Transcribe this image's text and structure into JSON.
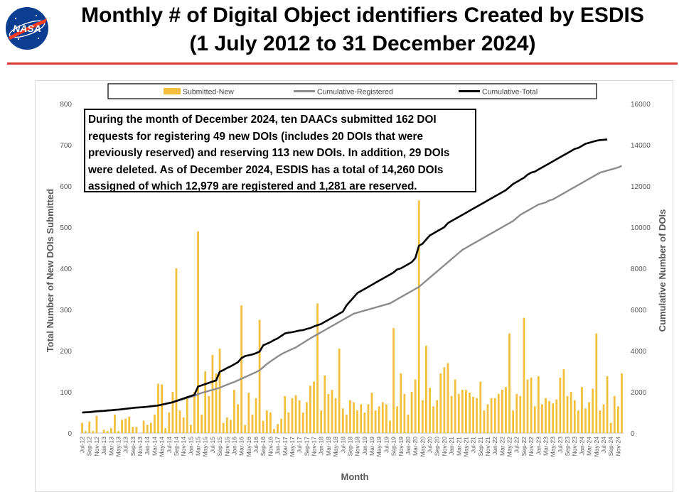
{
  "title": {
    "line1": "Monthly # of Digital Object identifiers Created by ESDIS",
    "line2": "(1 July 2012 to 31 December 2024)"
  },
  "logo": {
    "text": "NASA",
    "icon": "nasa-meatball-logo"
  },
  "annotation": "During the month of December 2024, ten DAACs submitted 162 DOI requests for registering 49 new DOIs (includes 20 DOIs that were previously reserved) and reserving 113 new DOIs. In addition, 29 DOIs were deleted. As of December 2024, ESDIS has a total of 14,260 DOIs assigned of which 12,979 are registered and 1,281 are reserved.",
  "colors": {
    "bar": "#f2c03c",
    "registered": "#8c8c8c",
    "total": "#000000",
    "rule": "#d9372e"
  },
  "chart_data": {
    "type": "bar+line",
    "xlabel": "Month",
    "ylabel": "Total Number of New DOIs Submitted",
    "y2label": "Cumulative Number of DOIs",
    "ylim": [
      0,
      800
    ],
    "y2lim": [
      0,
      16000
    ],
    "yticks": [
      0,
      100,
      200,
      300,
      400,
      500,
      600,
      700,
      800
    ],
    "y2ticks": [
      0,
      2000,
      4000,
      6000,
      8000,
      10000,
      12000,
      14000,
      16000
    ],
    "legend_position": "top",
    "tick_labels": [
      "Jul-12",
      "Sep-12",
      "Nov-12",
      "Jan-13",
      "Mar-13",
      "May-13",
      "Jul-13",
      "Sep-13",
      "Nov-13",
      "Jan-14",
      "Mar-14",
      "May-14",
      "Jul-14",
      "Sep-14",
      "Nov-14",
      "Jan-15",
      "Mar-15",
      "May-15",
      "Jul-15",
      "Sep-15",
      "Nov-15",
      "Jan-16",
      "Mar-16",
      "May-16",
      "Jul-16",
      "Sep-16",
      "Nov-16",
      "Jan-17",
      "Mar-17",
      "May-17",
      "Jul-17",
      "Sep-17",
      "Nov-17",
      "Jan-18",
      "Mar-18",
      "May-18",
      "Jul-18",
      "Sep-18",
      "Nov-18",
      "Jan-19",
      "Mar-19",
      "May-19",
      "Jul-19",
      "Sep-19",
      "Nov-19",
      "Jan-20",
      "Mar-20",
      "May-20",
      "Jul-20",
      "Sep-20",
      "Nov-20",
      "Jan-21",
      "Mar-21",
      "May-21",
      "Jul-21",
      "Sep-21",
      "Nov-21",
      "Jan-22",
      "Mar-22",
      "May-22",
      "Jul-22",
      "Sep-22",
      "Nov-22",
      "Jan-23",
      "Mar-23",
      "May-23",
      "Jul-23",
      "Sep-23",
      "Nov-23",
      "Jan-24",
      "Mar-24",
      "May-24",
      "Jul-24",
      "Sep-24",
      "Nov-24"
    ],
    "series": [
      {
        "name": "Submitted-New",
        "kind": "bar",
        "axis": "left",
        "values": [
          25,
          5,
          28,
          5,
          42,
          0,
          8,
          5,
          12,
          45,
          5,
          32,
          35,
          40,
          15,
          15,
          0,
          30,
          20,
          25,
          45,
          120,
          118,
          12,
          50,
          100,
          400,
          55,
          38,
          85,
          20,
          100,
          490,
          45,
          150,
          90,
          190,
          145,
          205,
          25,
          38,
          32,
          105,
          70,
          310,
          20,
          98,
          45,
          85,
          275,
          30,
          55,
          50,
          10,
          22,
          35,
          90,
          50,
          85,
          92,
          80,
          50,
          75,
          115,
          125,
          315,
          55,
          140,
          95,
          105,
          85,
          205,
          60,
          45,
          80,
          75,
          55,
          70,
          50,
          70,
          98,
          55,
          65,
          75,
          70,
          30,
          255,
          65,
          145,
          95,
          45,
          100,
          130,
          565,
          80,
          212,
          110,
          65,
          80,
          145,
          160,
          170,
          90,
          130,
          95,
          105,
          105,
          98,
          88,
          85,
          125,
          55,
          70,
          85,
          85,
          95,
          105,
          112,
          242,
          55,
          95,
          90,
          280,
          130,
          135,
          65,
          138,
          70,
          85,
          78,
          72,
          82,
          135,
          155,
          90,
          100,
          80,
          55,
          112,
          60,
          75,
          108,
          242,
          55,
          70,
          138,
          25,
          90,
          65,
          145
        ]
      },
      {
        "name": "Cumulative-Registered",
        "kind": "line",
        "axis": "right",
        "values": [
          990,
          1000,
          1010,
          1020,
          1040,
          1060,
          1070,
          1080,
          1100,
          1110,
          1130,
          1150,
          1180,
          1200,
          1220,
          1230,
          1240,
          1260,
          1280,
          1300,
          1320,
          1340,
          1380,
          1410,
          1450,
          1480,
          1550,
          1600,
          1650,
          1700,
          1760,
          1800,
          1890,
          1950,
          2000,
          2050,
          2100,
          2150,
          2200,
          2280,
          2350,
          2420,
          2480,
          2560,
          2640,
          2720,
          2800,
          2880,
          2960,
          3050,
          3200,
          3350,
          3480,
          3600,
          3720,
          3830,
          3920,
          4000,
          4080,
          4160,
          4270,
          4380,
          4490,
          4600,
          4700,
          4800,
          4900,
          5000,
          5100,
          5200,
          5300,
          5400,
          5500,
          5600,
          5700,
          5800,
          5850,
          5900,
          5950,
          6000,
          6050,
          6100,
          6150,
          6200,
          6250,
          6300,
          6400,
          6500,
          6600,
          6700,
          6800,
          6900,
          7000,
          7100,
          7250,
          7400,
          7550,
          7700,
          7850,
          8000,
          8150,
          8300,
          8450,
          8600,
          8750,
          8900,
          9000,
          9100,
          9200,
          9300,
          9400,
          9500,
          9600,
          9700,
          9800,
          9900,
          10000,
          10100,
          10200,
          10300,
          10450,
          10600,
          10700,
          10800,
          10900,
          11000,
          11100,
          11150,
          11200,
          11300,
          11350,
          11450,
          11550,
          11650,
          11750,
          11850,
          11950,
          12050,
          12150,
          12250,
          12350,
          12450,
          12550,
          12650,
          12700,
          12750,
          12800,
          12850,
          12900,
          12979
        ]
      },
      {
        "name": "Cumulative-Total",
        "kind": "line",
        "axis": "right",
        "values": [
          1000,
          1010,
          1020,
          1040,
          1060,
          1070,
          1080,
          1100,
          1110,
          1130,
          1140,
          1160,
          1180,
          1200,
          1220,
          1240,
          1250,
          1260,
          1280,
          1300,
          1320,
          1340,
          1380,
          1420,
          1460,
          1500,
          1560,
          1620,
          1680,
          1740,
          1800,
          1860,
          2260,
          2320,
          2380,
          2440,
          2500,
          2560,
          2980,
          3060,
          3160,
          3240,
          3340,
          3440,
          3640,
          3740,
          3780,
          3820,
          3880,
          3960,
          4260,
          4340,
          4420,
          4520,
          4600,
          4720,
          4840,
          4880,
          4900,
          4940,
          4980,
          5000,
          5060,
          5100,
          5180,
          5240,
          5300,
          5400,
          5500,
          5600,
          5700,
          5800,
          5900,
          6200,
          6400,
          6600,
          6800,
          6900,
          7000,
          7100,
          7200,
          7300,
          7400,
          7500,
          7600,
          7700,
          7800,
          7950,
          8000,
          8100,
          8200,
          8300,
          8500,
          9100,
          9200,
          9400,
          9600,
          9700,
          9800,
          9900,
          10000,
          10200,
          10300,
          10400,
          10500,
          10600,
          10700,
          10800,
          10900,
          11000,
          11100,
          11200,
          11300,
          11400,
          11500,
          11600,
          11700,
          11800,
          11950,
          12100,
          12200,
          12300,
          12400,
          12550,
          12650,
          12700,
          12800,
          12900,
          13000,
          13100,
          13200,
          13300,
          13400,
          13500,
          13600,
          13700,
          13800,
          13850,
          13950,
          14050,
          14100,
          14150,
          14200,
          14230,
          14245,
          14260
        ]
      }
    ]
  }
}
